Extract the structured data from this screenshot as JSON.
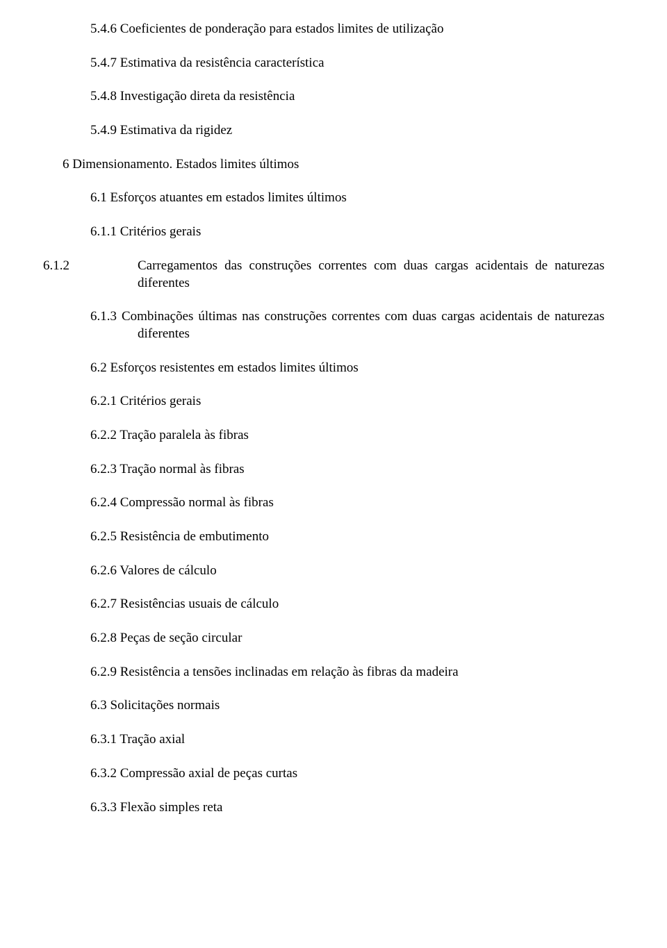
{
  "colors": {
    "text": "#000000",
    "background": "#ffffff"
  },
  "typography": {
    "font_family": "Times New Roman",
    "font_size_pt": 14
  },
  "toc": {
    "items": [
      {
        "num": "5.4.6",
        "text": "Coeficientes de ponderação para estados limites de utilização",
        "level": 1,
        "style": "left"
      },
      {
        "num": "5.4.7",
        "text": "Estimativa da resistência característica",
        "level": 1,
        "style": "left"
      },
      {
        "num": "5.4.8",
        "text": "Investigação direta da resistência",
        "level": 1,
        "style": "left"
      },
      {
        "num": "5.4.9",
        "text": "Estimativa da rigidez",
        "level": 1,
        "style": "left"
      },
      {
        "num": "6",
        "text": "Dimensionamento. Estados limites últimos",
        "level": 0,
        "style": "left"
      },
      {
        "num": "6.1",
        "text": "Esforços atuantes em estados limites últimos",
        "level": 1,
        "style": "left"
      },
      {
        "num": "6.1.1",
        "text": "Critérios gerais",
        "level": 2,
        "style": "left"
      },
      {
        "num": "6.1.2",
        "text": "Carregamentos das construções correntes com duas cargas acidentais de naturezas diferentes",
        "level": 2,
        "style": "justify-wrap"
      },
      {
        "num": "6.1.3",
        "text": "Combinações últimas nas construções correntes com duas cargas acidentais de naturezas diferentes",
        "level": 2,
        "style": "justify-hang"
      },
      {
        "num": "6.2",
        "text": "Esforços resistentes em estados limites últimos",
        "level": 1,
        "style": "left"
      },
      {
        "num": "6.2.1",
        "text": "Critérios gerais",
        "level": 2,
        "style": "left"
      },
      {
        "num": "6.2.2",
        "text": "Tração paralela às fibras",
        "level": 2,
        "style": "left"
      },
      {
        "num": "6.2.3",
        "text": "Tração normal às fibras",
        "level": 2,
        "style": "left"
      },
      {
        "num": "6.2.4",
        "text": "Compressão normal às fibras",
        "level": 2,
        "style": "left"
      },
      {
        "num": "6.2.5",
        "text": "Resistência de embutimento",
        "level": 2,
        "style": "left"
      },
      {
        "num": "6.2.6",
        "text": "Valores de cálculo",
        "level": 2,
        "style": "left"
      },
      {
        "num": "6.2.7",
        "text": "Resistências usuais de cálculo",
        "level": 2,
        "style": "left"
      },
      {
        "num": "6.2.8",
        "text": "Peças de seção circular",
        "level": 2,
        "style": "left"
      },
      {
        "num": "6.2.9",
        "text": "Resistência a tensões inclinadas em relação às fibras da madeira",
        "level": 2,
        "style": "left"
      },
      {
        "num": "6.3",
        "text": "Solicitações normais",
        "level": 1,
        "style": "left"
      },
      {
        "num": "6.3.1",
        "text": "Tração axial",
        "level": 2,
        "style": "left"
      },
      {
        "num": "6.3.2",
        "text": "Compressão axial de peças curtas",
        "level": 2,
        "style": "left"
      },
      {
        "num": "6.3.3",
        "text": "Flexão simples reta",
        "level": 2,
        "style": "left"
      }
    ]
  }
}
